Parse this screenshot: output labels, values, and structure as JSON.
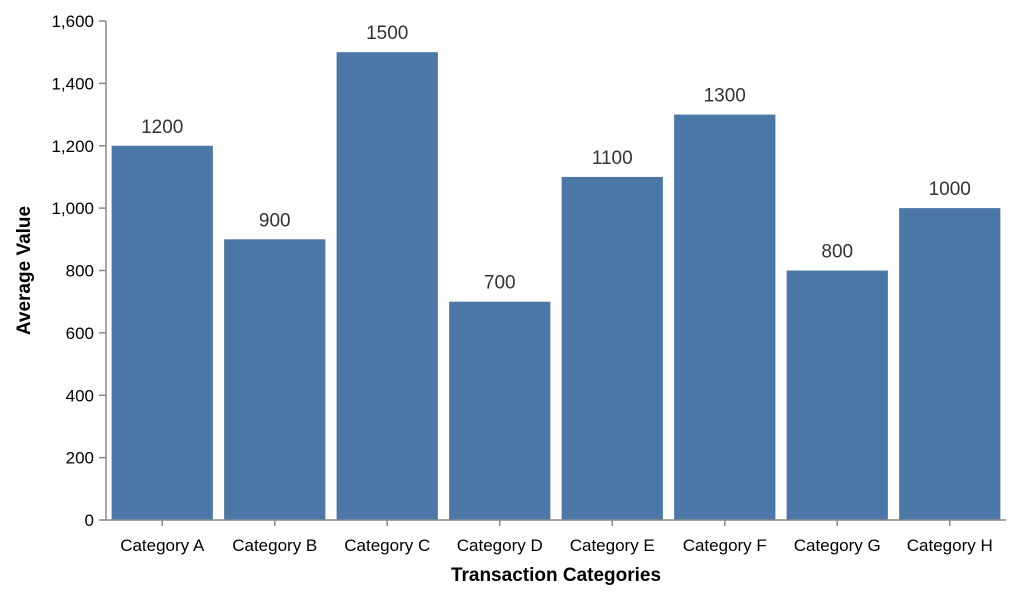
{
  "chart_data": {
    "type": "bar",
    "title": "",
    "xlabel": "Transaction Categories",
    "ylabel": "Average Value",
    "categories": [
      "Category A",
      "Category B",
      "Category C",
      "Category D",
      "Category E",
      "Category F",
      "Category G",
      "Category H"
    ],
    "values": [
      1200,
      900,
      1500,
      700,
      1100,
      1300,
      800,
      1000
    ],
    "value_labels": [
      "1200",
      "900",
      "1500",
      "700",
      "1100",
      "1300",
      "800",
      "1000"
    ],
    "ylim": [
      0,
      1600
    ],
    "y_ticks": [
      0,
      200,
      400,
      600,
      800,
      1000,
      1200,
      1400,
      1600
    ],
    "y_tick_labels": [
      "0",
      "200",
      "400",
      "600",
      "800",
      "1,000",
      "1,200",
      "1,400",
      "1,600"
    ],
    "grid": false,
    "legend": "none",
    "bar_color": "#4c78a8"
  }
}
